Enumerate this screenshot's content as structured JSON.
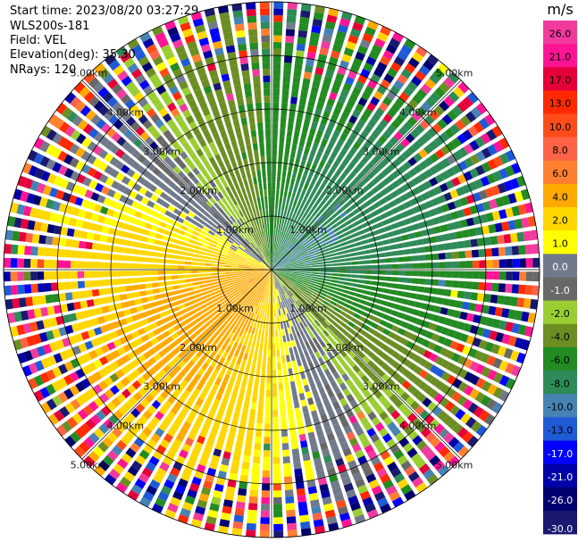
{
  "header": {
    "start_time": "Start time: 2023/08/20 03:27:29",
    "instrument": "WLS200s-181",
    "field": "Field: VEL",
    "elevation": "Elevation(deg): 35.30",
    "nrays": "NRays: 120"
  },
  "chart_data": {
    "type": "heatmap",
    "projection": "polar PPI",
    "rays": 120,
    "range_rings_km": [
      1.0,
      2.0,
      3.0,
      4.0,
      5.0
    ],
    "range_ring_labels": [
      "1.00km",
      "2.00km",
      "3.00km",
      "4.00km",
      "5.00km"
    ],
    "spokes": 8,
    "colorbar": {
      "unit": "m/s",
      "ticks": [
        "26.0",
        "21.0",
        "17.0",
        "13.0",
        "10.0",
        "8.0",
        "6.0",
        "4.0",
        "2.0",
        "1.0",
        "0.0",
        "-1.0",
        "-2.0",
        "-4.0",
        "-6.0",
        "-8.0",
        "-10.0",
        "-13.0",
        "-17.0",
        "-21.0",
        "-26.0",
        "-30.0"
      ],
      "bins": [
        {
          "lo": 26,
          "hi": 30,
          "color": "#f23a9e"
        },
        {
          "lo": 21,
          "hi": 26,
          "color": "#ff1493"
        },
        {
          "lo": 17,
          "hi": 21,
          "color": "#e6003a"
        },
        {
          "lo": 13,
          "hi": 17,
          "color": "#ff2a00"
        },
        {
          "lo": 10,
          "hi": 13,
          "color": "#ff4d1a"
        },
        {
          "lo": 8,
          "hi": 10,
          "color": "#ff6347"
        },
        {
          "lo": 6,
          "hi": 8,
          "color": "#ff8030"
        },
        {
          "lo": 4,
          "hi": 6,
          "color": "#ffaa00"
        },
        {
          "lo": 2,
          "hi": 4,
          "color": "#ffd700"
        },
        {
          "lo": 1,
          "hi": 2,
          "color": "#ffff00"
        },
        {
          "lo": 0,
          "hi": 1,
          "color": "#707a8a"
        },
        {
          "lo": -1,
          "hi": 0,
          "color": "#686868"
        },
        {
          "lo": -2,
          "hi": -1,
          "color": "#9acd32"
        },
        {
          "lo": -4,
          "hi": -2,
          "color": "#6b8e23"
        },
        {
          "lo": -6,
          "hi": -4,
          "color": "#228b22"
        },
        {
          "lo": -8,
          "hi": -6,
          "color": "#2e8b57"
        },
        {
          "lo": -10,
          "hi": -8,
          "color": "#4682b4"
        },
        {
          "lo": -13,
          "hi": -10,
          "color": "#1e5ad6"
        },
        {
          "lo": -17,
          "hi": -13,
          "color": "#0000ff"
        },
        {
          "lo": -21,
          "hi": -17,
          "color": "#0000aa"
        },
        {
          "lo": -26,
          "hi": -21,
          "color": "#000070"
        },
        {
          "lo": -30,
          "hi": -26,
          "color": "#191970"
        }
      ]
    }
  }
}
